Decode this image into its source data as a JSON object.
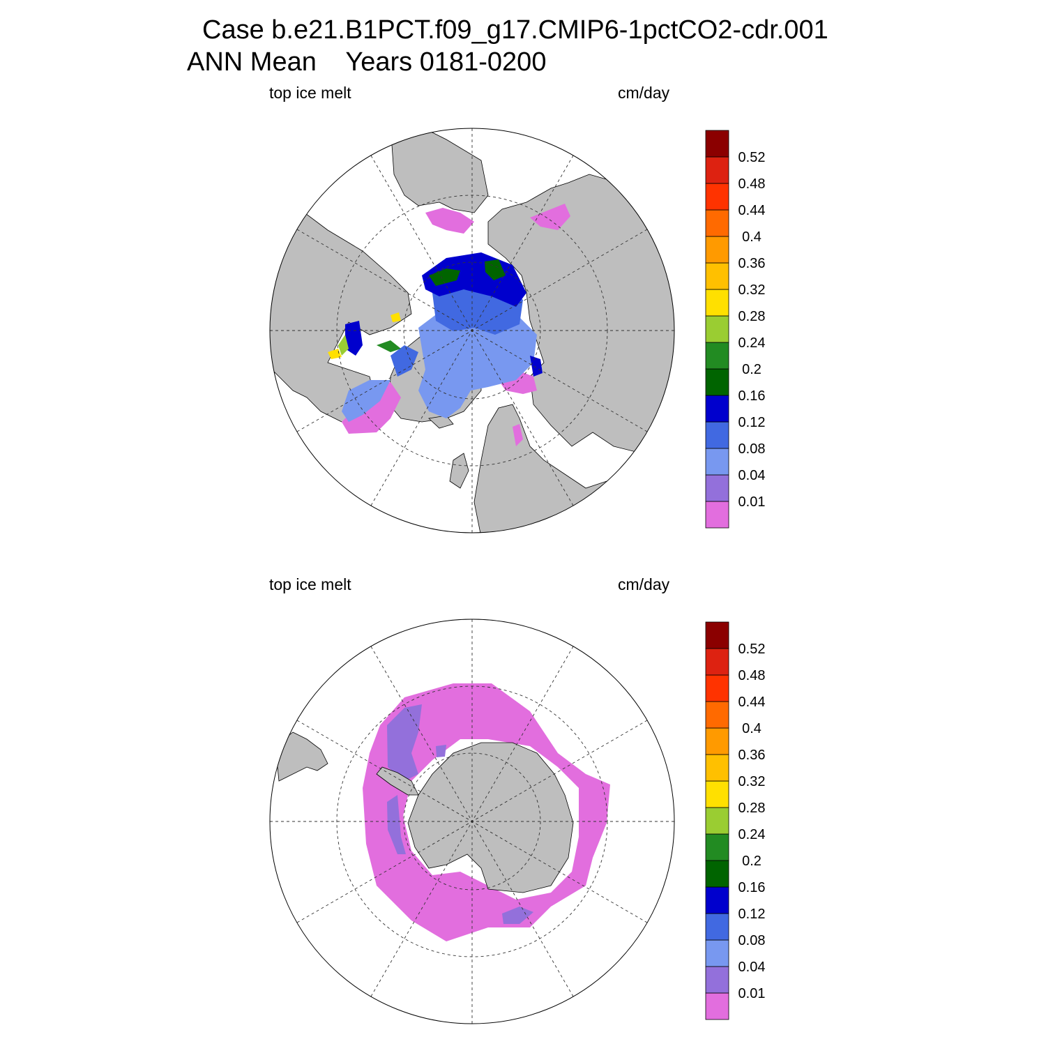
{
  "title_line1": "Case b.e21.B1PCT.f09_g17.CMIP6-1pctCO2-cdr.001",
  "title_line2": "ANN Mean    Years 0181-0200",
  "panels": [
    {
      "name": "north",
      "left_label": "top ice melt",
      "right_label": "cm/day"
    },
    {
      "name": "south",
      "left_label": "top ice melt",
      "right_label": "cm/day"
    }
  ],
  "colorbar": {
    "labels": [
      "0.01",
      "0.04",
      "0.08",
      "0.12",
      "0.16",
      "0.2",
      "0.24",
      "0.28",
      "0.32",
      "0.36",
      "0.4",
      "0.44",
      "0.48",
      "0.52"
    ],
    "colors": [
      "#e26ede",
      "#9370db",
      "#7898f0",
      "#4169e1",
      "#0000cd",
      "#006400",
      "#228b22",
      "#9acd32",
      "#ffe000",
      "#ffc000",
      "#ff9a00",
      "#ff6a00",
      "#ff3300",
      "#dd2211",
      "#8b0000"
    ]
  },
  "colors": {
    "land": "#bebebe",
    "ocean": "#ffffff"
  }
}
